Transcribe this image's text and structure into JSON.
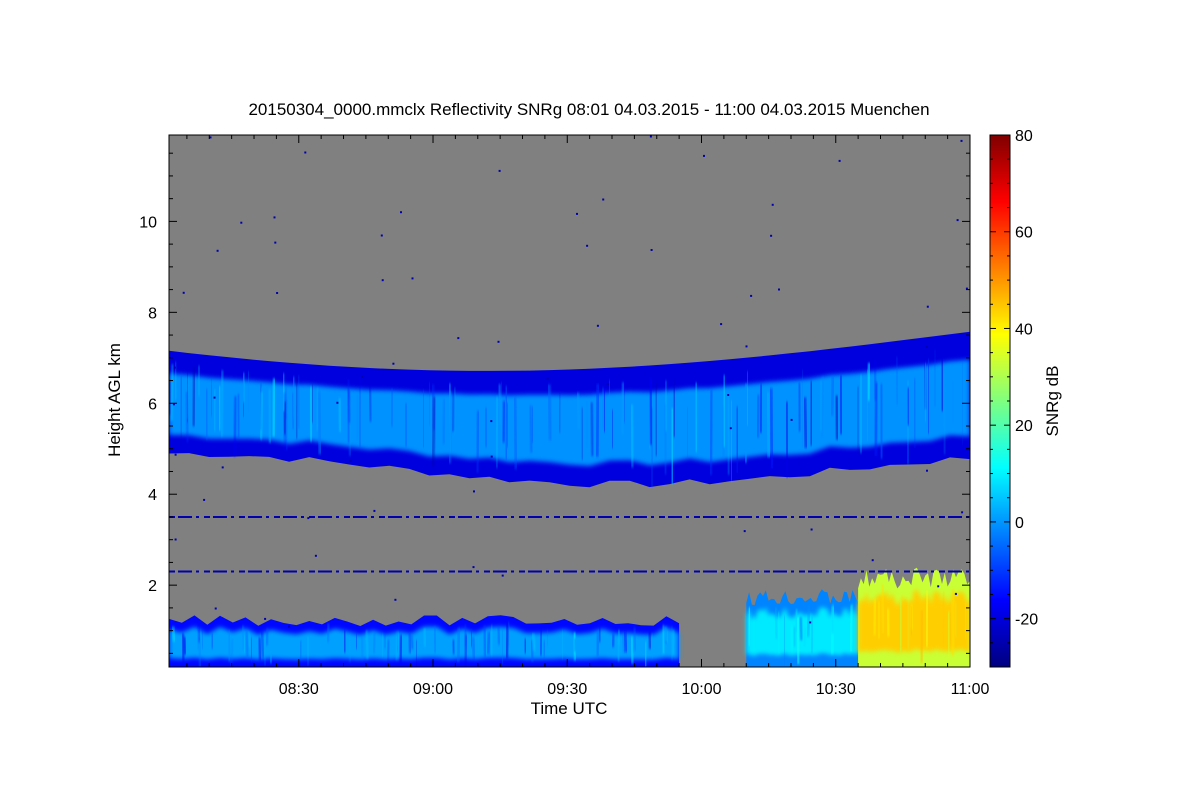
{
  "chart_data": {
    "type": "heatmap",
    "title": "20150304_0000.mmclx Reflectivity SNRg   08:01 04.03.2015 - 11:00 04.03.2015 Muenchen",
    "xlabel": "Time UTC",
    "ylabel": "Height AGL km",
    "xlim": [
      "08:01",
      "11:00"
    ],
    "ylim": [
      0.2,
      11.9
    ],
    "x_ticks": [
      "08:30",
      "09:00",
      "09:30",
      "10:00",
      "10:30",
      "11:00"
    ],
    "y_ticks": [
      2,
      4,
      6,
      8,
      10
    ],
    "colorbar": {
      "label": "SNRg dB",
      "range": [
        -30,
        80
      ],
      "ticks": [
        -20,
        0,
        20,
        40,
        60,
        80
      ],
      "colors": [
        "#00007f",
        "#0000ff",
        "#007fff",
        "#00ffff",
        "#7fff7f",
        "#ffff00",
        "#ff7f00",
        "#ff0000",
        "#7f0000"
      ]
    },
    "background_color": "#808080",
    "features": [
      {
        "name": "Mid-level cloud layer",
        "time": [
          "08:01",
          "11:00"
        ],
        "height_km": [
          4.2,
          7.6
        ],
        "snr_db": [
          -25,
          10
        ]
      },
      {
        "name": "Low-level echoes (early)",
        "time": [
          "08:01",
          "09:55"
        ],
        "height_km": [
          0.2,
          1.4
        ],
        "snr_db": [
          -20,
          10
        ]
      },
      {
        "name": "Precipitation onset",
        "time": [
          "10:10",
          "10:35"
        ],
        "height_km": [
          0.2,
          2.0
        ],
        "snr_db": [
          -5,
          15
        ]
      },
      {
        "name": "Strong precipitation",
        "time": [
          "10:35",
          "11:00"
        ],
        "height_km": [
          0.2,
          2.5
        ],
        "snr_db": [
          30,
          50
        ]
      },
      {
        "name": "Noise line",
        "time": [
          "08:01",
          "11:00"
        ],
        "height_km": [
          2.3,
          2.3
        ],
        "snr_db": [
          -25,
          -25
        ]
      },
      {
        "name": "Noise line",
        "time": [
          "08:01",
          "11:00"
        ],
        "height_km": [
          3.5,
          3.5
        ],
        "snr_db": [
          -25,
          -25
        ]
      }
    ]
  }
}
